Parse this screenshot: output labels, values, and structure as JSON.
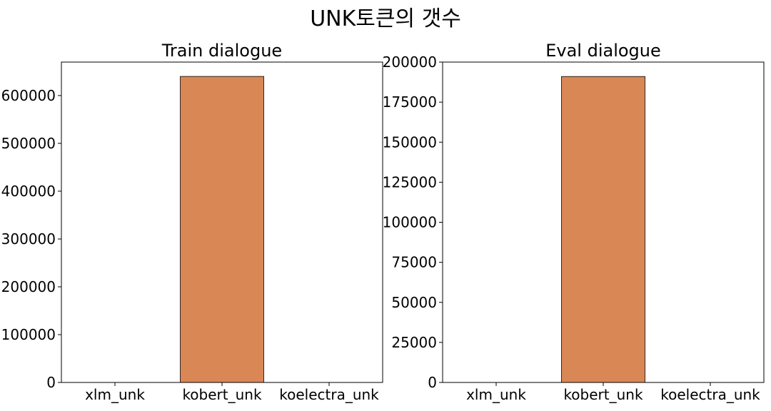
{
  "figure": {
    "suptitle": "UNK토큰의 갯수"
  },
  "chart_data": [
    {
      "type": "bar",
      "title": "Train dialogue",
      "categories": [
        "xlm_unk",
        "kobert_unk",
        "koelectra_unk"
      ],
      "values": [
        0,
        640000,
        0
      ],
      "ylim": [
        0,
        670000
      ],
      "yticks": [
        0,
        100000,
        200000,
        300000,
        400000,
        500000,
        600000
      ],
      "xlabel": "",
      "ylabel": "",
      "bar_color": "#DA8756",
      "grid": false
    },
    {
      "type": "bar",
      "title": "Eval dialogue",
      "categories": [
        "xlm_unk",
        "kobert_unk",
        "koelectra_unk"
      ],
      "values": [
        0,
        191000,
        0
      ],
      "ylim": [
        0,
        200000
      ],
      "yticks": [
        0,
        25000,
        50000,
        75000,
        100000,
        125000,
        150000,
        175000,
        200000
      ],
      "xlabel": "",
      "ylabel": "",
      "bar_color": "#DA8756",
      "grid": false
    }
  ]
}
